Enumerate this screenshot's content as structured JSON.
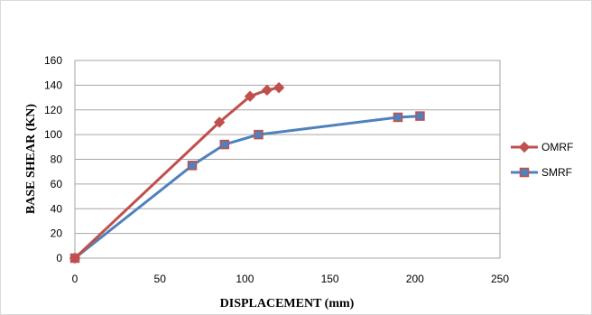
{
  "chart_data": {
    "type": "line",
    "title": "",
    "xlabel": "DISPLACEMENT (mm)",
    "ylabel": "BASE SHEAR (KN)",
    "xlim": [
      0,
      250
    ],
    "ylim": [
      0,
      160
    ],
    "xticks": [
      0,
      50,
      100,
      150,
      200,
      250
    ],
    "yticks": [
      0,
      20,
      40,
      60,
      80,
      100,
      120,
      140,
      160
    ],
    "grid": "horizontal",
    "legend_position": "right",
    "series": [
      {
        "name": "OMRF",
        "color": "#c0504d",
        "marker": "diamond",
        "points": [
          [
            0,
            0
          ],
          [
            85,
            110
          ],
          [
            103,
            131
          ],
          [
            113,
            136
          ],
          [
            120,
            138
          ]
        ]
      },
      {
        "name": "SMRF",
        "color": "#4f81bd",
        "marker": "square",
        "points": [
          [
            0,
            0
          ],
          [
            69,
            75
          ],
          [
            88,
            92
          ],
          [
            108,
            100
          ],
          [
            190,
            114
          ],
          [
            203,
            115
          ]
        ]
      }
    ]
  }
}
